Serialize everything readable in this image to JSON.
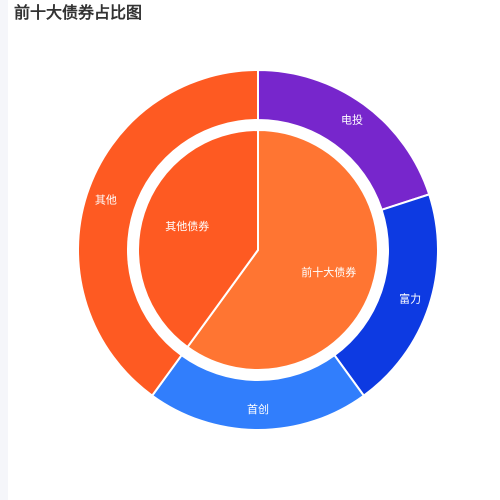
{
  "chart_data": {
    "type": "pie",
    "title": "前十大债券占比图",
    "inner": [
      {
        "name": "前十大债券",
        "value": 60,
        "color": "#ff7532"
      },
      {
        "name": "其他债券",
        "value": 40,
        "color": "#fe5a22"
      }
    ],
    "outer": [
      {
        "name": "电投",
        "value": 20,
        "color": "#7726cc"
      },
      {
        "name": "富力",
        "value": 20,
        "color": "#0d3ae2"
      },
      {
        "name": "首创",
        "value": 20,
        "color": "#317efc"
      },
      {
        "name": "其他",
        "value": 40,
        "color": "#fe5a22"
      }
    ]
  }
}
